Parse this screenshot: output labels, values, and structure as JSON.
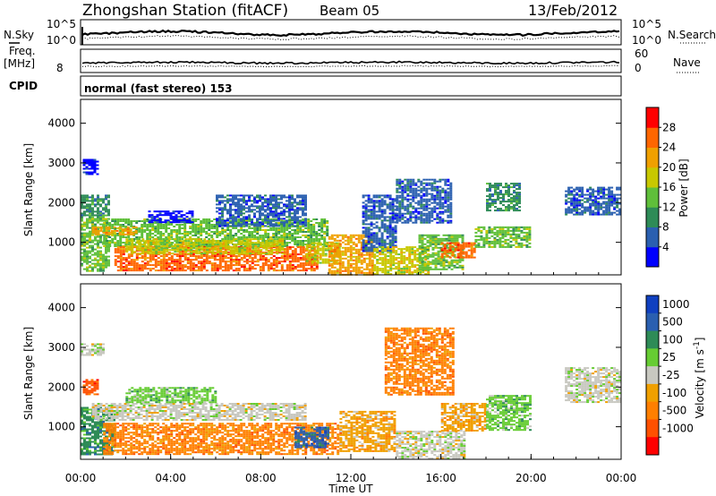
{
  "header": {
    "station": "Zhongshan Station (fitACF)",
    "beam": "Beam 05",
    "date": "13/Feb/2012"
  },
  "noise_panel": {
    "left_label": "N.Sky",
    "right_label": "N.Search",
    "left_ticks": [
      "10^5",
      "10^0"
    ],
    "right_ticks": [
      "10^5",
      "10^0"
    ],
    "ylim": [
      0,
      5
    ]
  },
  "freq_panel": {
    "left_label_1": "Freq.",
    "left_label_2": "[MHz]",
    "right_label": "Nave",
    "left_ticks": [
      "8"
    ],
    "right_ticks": [
      "60",
      "0"
    ]
  },
  "cpid": {
    "label": "CPID",
    "text": "normal (fast stereo) 153"
  },
  "chart_data": [
    {
      "type": "heatmap",
      "name": "Power",
      "ylabel": "Slant Range [km]",
      "xlabel": "",
      "yticks": [
        "4000",
        "3000",
        "2000",
        "1000"
      ],
      "ylim": [
        180,
        4600
      ],
      "xlim": [
        0,
        24
      ],
      "colorbar": {
        "label": "Power [dB]",
        "ticks": [
          "28",
          "24",
          "20",
          "16",
          "12",
          "8",
          "4"
        ],
        "range": [
          0,
          32
        ],
        "colors": [
          "#0000ff",
          "#2a5fb0",
          "#2e8b57",
          "#5fbf3a",
          "#c8c800",
          "#f0a000",
          "#ff6600",
          "#ff0000"
        ]
      },
      "regions": [
        {
          "t": [
            0.0,
            1.3
          ],
          "r": [
            300,
            1700
          ],
          "c": 3
        },
        {
          "t": [
            0.0,
            1.2
          ],
          "r": [
            1700,
            2200
          ],
          "c": 2
        },
        {
          "t": [
            0.1,
            0.8
          ],
          "r": [
            2700,
            3100
          ],
          "c": 0
        },
        {
          "t": [
            1.0,
            11.0
          ],
          "r": [
            900,
            1600
          ],
          "c": 3
        },
        {
          "t": [
            1.5,
            10.5
          ],
          "r": [
            300,
            900
          ],
          "c": 6
        },
        {
          "t": [
            2.0,
            9.0
          ],
          "r": [
            700,
            1100
          ],
          "c": 4
        },
        {
          "t": [
            0.5,
            2.5
          ],
          "r": [
            1200,
            1400
          ],
          "c": 5
        },
        {
          "t": [
            3.0,
            5.0
          ],
          "r": [
            1500,
            1800
          ],
          "c": 0
        },
        {
          "t": [
            6.0,
            10.0
          ],
          "r": [
            1400,
            2200
          ],
          "c": 1
        },
        {
          "t": [
            10.0,
            11.5
          ],
          "r": [
            500,
            1000
          ],
          "c": 4
        },
        {
          "t": [
            11.0,
            13.0
          ],
          "r": [
            200,
            1200
          ],
          "c": 5
        },
        {
          "t": [
            12.5,
            14.0
          ],
          "r": [
            800,
            2200
          ],
          "c": 1
        },
        {
          "t": [
            13.0,
            15.5
          ],
          "r": [
            200,
            900
          ],
          "c": 4
        },
        {
          "t": [
            14.0,
            16.5
          ],
          "r": [
            1500,
            2600
          ],
          "c": 1
        },
        {
          "t": [
            15.0,
            17.0
          ],
          "r": [
            300,
            1200
          ],
          "c": 3
        },
        {
          "t": [
            16.0,
            17.5
          ],
          "r": [
            600,
            1000
          ],
          "c": 6
        },
        {
          "t": [
            17.5,
            20.0
          ],
          "r": [
            900,
            1400
          ],
          "c": 3
        },
        {
          "t": [
            18.0,
            19.5
          ],
          "r": [
            1800,
            2500
          ],
          "c": 2
        },
        {
          "t": [
            21.5,
            24.0
          ],
          "r": [
            1700,
            2400
          ],
          "c": 1
        }
      ]
    },
    {
      "type": "heatmap",
      "name": "Velocity",
      "ylabel": "Slant Range [km]",
      "xlabel": "Time UT",
      "yticks": [
        "4000",
        "3000",
        "2000",
        "1000"
      ],
      "ylim": [
        180,
        4600
      ],
      "xlim": [
        0,
        24
      ],
      "xticks": [
        "00:00",
        "04:00",
        "08:00",
        "12:00",
        "16:00",
        "20:00",
        "00:00"
      ],
      "colorbar": {
        "label": "Velocity [m s",
        "label_sup": "-1",
        "label_end": "]",
        "ticks": [
          "1000",
          "500",
          "100",
          "25",
          "-25",
          "-100",
          "-500",
          "-1000"
        ],
        "colors": [
          "#1040c0",
          "#2a5fb0",
          "#2e8b57",
          "#66cc33",
          "#c8c8c0",
          "#f0a000",
          "#ff7f00",
          "#ff5000",
          "#ff0000"
        ]
      },
      "regions": [
        {
          "t": [
            0.0,
            1.5
          ],
          "r": [
            300,
            1500
          ],
          "c": 2
        },
        {
          "t": [
            0.1,
            0.8
          ],
          "r": [
            1800,
            2200
          ],
          "c": 7
        },
        {
          "t": [
            0.0,
            1.0
          ],
          "r": [
            2800,
            3100
          ],
          "c": 4
        },
        {
          "t": [
            1.0,
            11.5
          ],
          "r": [
            300,
            1100
          ],
          "c": 6
        },
        {
          "t": [
            0.5,
            10.0
          ],
          "r": [
            1150,
            1600
          ],
          "c": 4
        },
        {
          "t": [
            2.0,
            6.0
          ],
          "r": [
            1600,
            2000
          ],
          "c": 3
        },
        {
          "t": [
            9.5,
            11.0
          ],
          "r": [
            500,
            1000
          ],
          "c": 1
        },
        {
          "t": [
            11.5,
            14.0
          ],
          "r": [
            400,
            1400
          ],
          "c": 5
        },
        {
          "t": [
            13.5,
            16.5
          ],
          "r": [
            1800,
            3500
          ],
          "c": 6
        },
        {
          "t": [
            14.0,
            17.0
          ],
          "r": [
            200,
            900
          ],
          "c": 4
        },
        {
          "t": [
            16.0,
            18.0
          ],
          "r": [
            900,
            1600
          ],
          "c": 5
        },
        {
          "t": [
            18.0,
            20.0
          ],
          "r": [
            900,
            1800
          ],
          "c": 3
        },
        {
          "t": [
            21.5,
            24.0
          ],
          "r": [
            1600,
            2500
          ],
          "c": 4
        }
      ]
    }
  ]
}
